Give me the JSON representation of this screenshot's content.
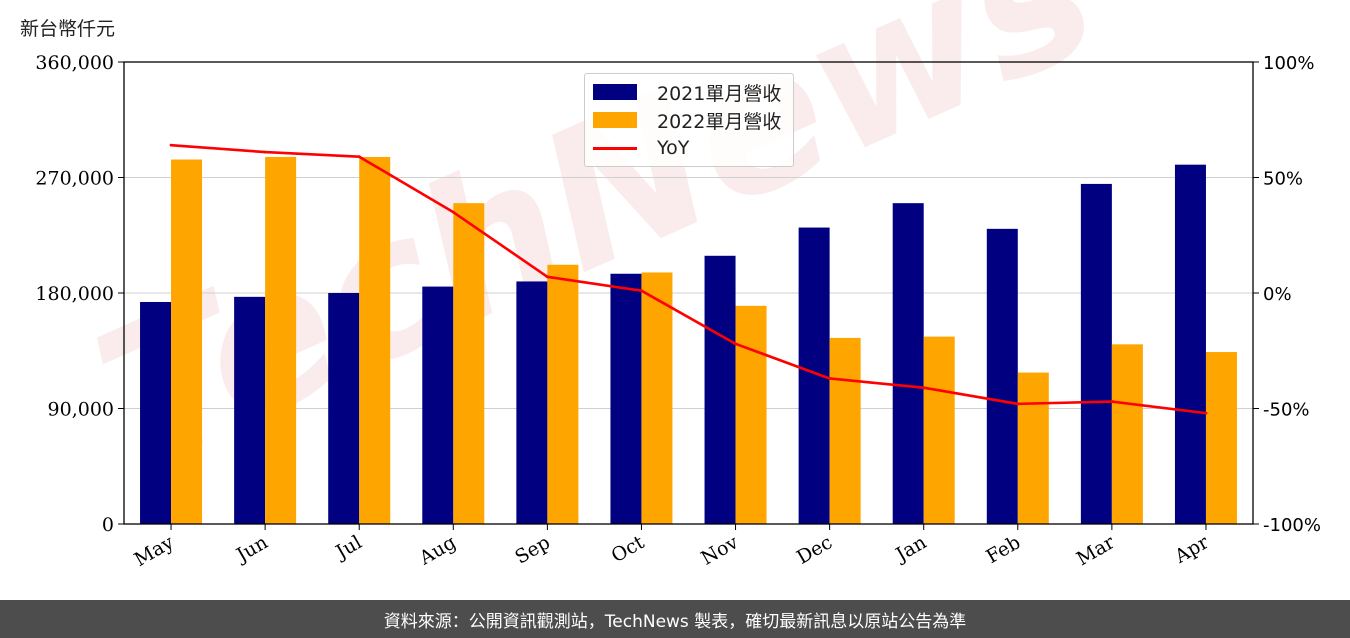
{
  "unit_label": "新台幣仟元",
  "footer_text": "資料來源：公開資訊觀測站，TechNews 製表，確切最新訊息以原站公告為準",
  "watermark": "TechNews",
  "colors": {
    "series_2021": "#000080",
    "series_2022": "#ffa500",
    "yoy": "#ff0000",
    "footer_bg": "#4d4d4d"
  },
  "chart_data": {
    "type": "bar",
    "categories": [
      "May",
      "Jun",
      "Jul",
      "Aug",
      "Sep",
      "Oct",
      "Nov",
      "Dec",
      "Jan",
      "Feb",
      "Mar",
      "Apr"
    ],
    "series": [
      {
        "name": "2021單月營收",
        "values": [
          173000,
          177000,
          180000,
          185000,
          189000,
          195000,
          209000,
          231000,
          250000,
          230000,
          265000,
          280000
        ]
      },
      {
        "name": "2022單月營收",
        "values": [
          284000,
          286000,
          286000,
          250000,
          202000,
          196000,
          170000,
          145000,
          146000,
          118000,
          140000,
          134000
        ]
      }
    ],
    "line_series": {
      "name": "YoY",
      "axis": "right",
      "values": [
        64,
        61,
        59,
        35,
        7,
        1,
        -22,
        -37,
        -41,
        -48,
        -47,
        -52
      ]
    },
    "ylim": [
      0,
      360000
    ],
    "yticks": [
      "0",
      "90,000",
      "180,000",
      "270,000",
      "360,000"
    ],
    "y2lim": [
      -100,
      100
    ],
    "y2ticks": [
      "-100%",
      "-50%",
      "0%",
      "50%",
      "100%"
    ],
    "grid": "horizontal",
    "legend_position": "top-center"
  }
}
